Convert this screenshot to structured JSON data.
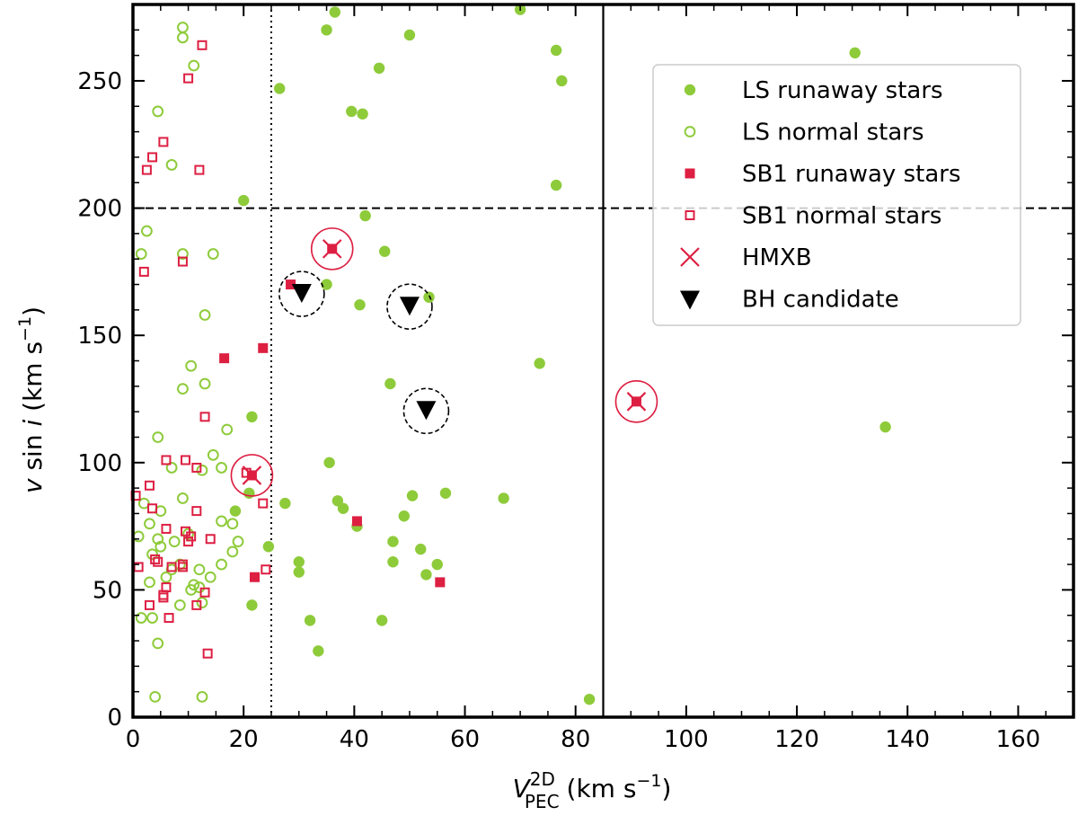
{
  "chart_data": {
    "type": "scatter",
    "xlabel": "V_PEC^2D (km s^-1)",
    "xlabel_main": "V",
    "xlabel_sup": "2D",
    "xlabel_sub": "PEC",
    "xlabel_unit": "(km s",
    "xlabel_unit_exp": "−1",
    "xlabel_unit_close": ")",
    "ylabel": "v sin i (km s^-1)",
    "ylabel_v": "v",
    "ylabel_sin": " sin ",
    "ylabel_i": "i",
    "ylabel_unit": " (km s",
    "ylabel_unit_exp": "−1",
    "ylabel_unit_close": ")",
    "xlim": [
      0,
      170
    ],
    "ylim": [
      0,
      280
    ],
    "xticks": [
      0,
      20,
      40,
      60,
      80,
      100,
      120,
      140,
      160
    ],
    "yticks": [
      0,
      50,
      100,
      150,
      200,
      250
    ],
    "grid": false,
    "legend_position": "top-right",
    "reference_lines": [
      {
        "orientation": "vertical",
        "value": 25,
        "style": "dotted"
      },
      {
        "orientation": "vertical",
        "value": 85,
        "style": "solid"
      },
      {
        "orientation": "horizontal",
        "value": 200,
        "style": "dashed"
      }
    ],
    "series": [
      {
        "name": "LS runaway stars",
        "marker": "filled-circle",
        "color": "#8ecb3a",
        "points": [
          [
            26.5,
            247
          ],
          [
            35,
            270
          ],
          [
            36.5,
            277
          ],
          [
            44.5,
            255
          ],
          [
            50,
            268
          ],
          [
            39.5,
            238
          ],
          [
            41.5,
            237
          ],
          [
            70,
            278
          ],
          [
            76.5,
            262
          ],
          [
            77.5,
            250
          ],
          [
            76.5,
            209
          ],
          [
            130.5,
            261
          ],
          [
            20,
            203
          ],
          [
            42,
            197
          ],
          [
            45.5,
            183
          ],
          [
            35,
            170
          ],
          [
            41,
            162
          ],
          [
            53.5,
            165
          ],
          [
            73.5,
            139
          ],
          [
            46.5,
            131
          ],
          [
            21.5,
            118
          ],
          [
            136,
            114
          ],
          [
            35.5,
            100
          ],
          [
            21,
            88
          ],
          [
            27.5,
            84
          ],
          [
            37,
            85
          ],
          [
            38,
            82
          ],
          [
            50.5,
            87
          ],
          [
            56.5,
            88
          ],
          [
            67,
            86
          ],
          [
            18.5,
            81
          ],
          [
            49,
            79
          ],
          [
            40.5,
            75
          ],
          [
            47,
            69
          ],
          [
            52,
            66
          ],
          [
            24.5,
            67
          ],
          [
            30,
            61
          ],
          [
            30,
            57
          ],
          [
            47,
            61
          ],
          [
            53,
            56
          ],
          [
            55,
            60
          ],
          [
            21.5,
            44
          ],
          [
            32,
            38
          ],
          [
            45,
            38
          ],
          [
            33.5,
            26
          ],
          [
            82.5,
            7
          ]
        ]
      },
      {
        "name": "LS normal stars",
        "marker": "open-circle",
        "color": "#8ecb3a",
        "points": [
          [
            9,
            271
          ],
          [
            9,
            267
          ],
          [
            11,
            256
          ],
          [
            4.5,
            238
          ],
          [
            7,
            217
          ],
          [
            2.5,
            191
          ],
          [
            1.5,
            182
          ],
          [
            9,
            182
          ],
          [
            14.5,
            182
          ],
          [
            13,
            158
          ],
          [
            10.5,
            138
          ],
          [
            9,
            129
          ],
          [
            13,
            131
          ],
          [
            17,
            113
          ],
          [
            4.5,
            110
          ],
          [
            14.5,
            103
          ],
          [
            12.5,
            97
          ],
          [
            16,
            98
          ],
          [
            7,
            98
          ],
          [
            9,
            86
          ],
          [
            2,
            84
          ],
          [
            5,
            81
          ],
          [
            16,
            77
          ],
          [
            18,
            76
          ],
          [
            3,
            76
          ],
          [
            4.5,
            70
          ],
          [
            10,
            72
          ],
          [
            7.5,
            69
          ],
          [
            1,
            71
          ],
          [
            19,
            69
          ],
          [
            5,
            67
          ],
          [
            3.5,
            64
          ],
          [
            18,
            65
          ],
          [
            8.5,
            60
          ],
          [
            7,
            58
          ],
          [
            16,
            60
          ],
          [
            12,
            58
          ],
          [
            6,
            55
          ],
          [
            14,
            55
          ],
          [
            3,
            53
          ],
          [
            11,
            52
          ],
          [
            12,
            51
          ],
          [
            10.5,
            50
          ],
          [
            12.5,
            45
          ],
          [
            8.5,
            44
          ],
          [
            1.5,
            39
          ],
          [
            3.5,
            39
          ],
          [
            4.5,
            29
          ],
          [
            12.5,
            8
          ],
          [
            4,
            8
          ]
        ]
      },
      {
        "name": "SB1 runaway stars",
        "marker": "filled-square",
        "color": "#dd1f42",
        "points": [
          [
            16.5,
            141
          ],
          [
            23.5,
            145
          ],
          [
            28.5,
            170
          ],
          [
            36,
            184
          ],
          [
            21.5,
            95
          ],
          [
            40.5,
            77
          ],
          [
            22,
            55
          ],
          [
            55.5,
            53
          ],
          [
            91,
            124
          ]
        ]
      },
      {
        "name": "SB1 normal stars",
        "marker": "open-square",
        "color": "#dd1f42",
        "points": [
          [
            12.5,
            264
          ],
          [
            10,
            251
          ],
          [
            5.5,
            226
          ],
          [
            3.5,
            220
          ],
          [
            2.5,
            215
          ],
          [
            12,
            215
          ],
          [
            2,
            175
          ],
          [
            9,
            179
          ],
          [
            13,
            118
          ],
          [
            6,
            101
          ],
          [
            9.5,
            101
          ],
          [
            11.5,
            98
          ],
          [
            20.5,
            96
          ],
          [
            23.5,
            84
          ],
          [
            0.5,
            87
          ],
          [
            3,
            91
          ],
          [
            3.5,
            82
          ],
          [
            11.5,
            81
          ],
          [
            6,
            74
          ],
          [
            9.5,
            73
          ],
          [
            10.5,
            71
          ],
          [
            14,
            70
          ],
          [
            10,
            69
          ],
          [
            4,
            62
          ],
          [
            4.5,
            61
          ],
          [
            1,
            59
          ],
          [
            7,
            59
          ],
          [
            9,
            60
          ],
          [
            9,
            59
          ],
          [
            24,
            58
          ],
          [
            6,
            51
          ],
          [
            5.5,
            48
          ],
          [
            5.5,
            47
          ],
          [
            13,
            49
          ],
          [
            3,
            44
          ],
          [
            11.5,
            44
          ],
          [
            6.5,
            39
          ],
          [
            13.5,
            25
          ]
        ]
      },
      {
        "name": "HMXB",
        "marker": "cross-in-circle",
        "color": "#dd1f42",
        "points": [
          [
            36,
            184
          ],
          [
            21.5,
            95
          ],
          [
            91,
            124
          ]
        ]
      },
      {
        "name": "BH candidate",
        "marker": "down-triangle-in-dashed-circle",
        "color": "#000000",
        "points": [
          [
            30.5,
            167
          ],
          [
            50,
            162
          ],
          [
            53,
            121
          ]
        ]
      }
    ]
  },
  "legend": {
    "items": [
      {
        "label": "LS runaway stars",
        "marker": "filled-circle"
      },
      {
        "label": "LS normal stars",
        "marker": "open-circle"
      },
      {
        "label": "SB1 runaway stars",
        "marker": "filled-square"
      },
      {
        "label": "SB1 normal stars",
        "marker": "open-square"
      },
      {
        "label": "HMXB",
        "marker": "cross"
      },
      {
        "label": "BH candidate",
        "marker": "down-triangle"
      }
    ]
  },
  "colors": {
    "ls_green": "#8ecb3a",
    "sb1_red": "#dd1f42",
    "black": "#000000"
  }
}
